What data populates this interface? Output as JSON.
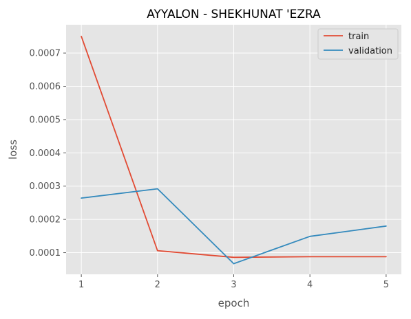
{
  "chart_data": {
    "type": "line",
    "title": "AYYALON - SHEKHUNAT 'EZRA",
    "xlabel": "epoch",
    "ylabel": "loss",
    "x": [
      1,
      2,
      3,
      4,
      5
    ],
    "xticks": [
      "1",
      "2",
      "3",
      "4",
      "5"
    ],
    "yticks": [
      "0.0001",
      "0.0002",
      "0.0003",
      "0.0004",
      "0.0005",
      "0.0006",
      "0.0007"
    ],
    "ytick_values": [
      0.0001,
      0.0002,
      0.0003,
      0.0004,
      0.0005,
      0.0006,
      0.0007
    ],
    "xlim": [
      0.8,
      5.2
    ],
    "ylim": [
      3.5e-05,
      0.000785
    ],
    "grid": true,
    "legend_position": "top-right",
    "series": [
      {
        "name": "train",
        "color": "#E24A33",
        "values": [
          0.00075,
          0.000106,
          8.6e-05,
          8.8e-05,
          8.8e-05
        ]
      },
      {
        "name": "validation",
        "color": "#348ABD",
        "values": [
          0.000264,
          0.000292,
          6.7e-05,
          0.000149,
          0.00018
        ]
      }
    ],
    "colors": {
      "plot_background": "#E5E5E5",
      "grid": "#FFFFFF",
      "text": "#555555",
      "title": "#000000"
    }
  }
}
